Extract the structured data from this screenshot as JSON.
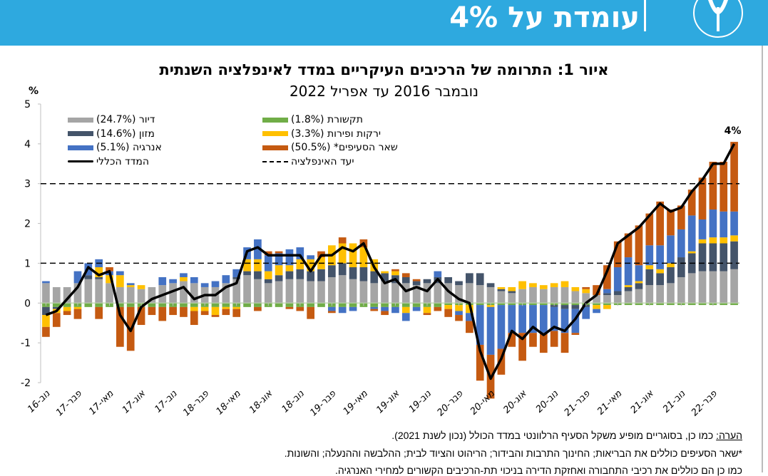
{
  "header": {
    "title": "עומדת על 4%",
    "logo_text": "בנק ישראל"
  },
  "chart_data": {
    "type": "bar",
    "stacked": true,
    "title": "איור 1: התרומה של הרכיבים העיקריים במדד לאינפלציה השנתית",
    "subtitle": "נובמבר 2016 עד  אפריל 2022",
    "ylabel": "%",
    "ylim": [
      -2,
      5
    ],
    "yticks": [
      "5",
      "4",
      "3",
      "2",
      "1",
      "0",
      "-1",
      "-2"
    ],
    "xtick_labels": [
      "נוב-16",
      "פבר-17",
      "מאי-17",
      "אוג-17",
      "נוב-17",
      "פבר-18",
      "מאי-18",
      "אוג-18",
      "נוב-18",
      "פבר-19",
      "מאי-19",
      "אוג-19",
      "נוב-19",
      "פבר-20",
      "מאי-20",
      "אוג-20",
      "נוב-20",
      "פבר-21",
      "מאי-21",
      "אוג-21",
      "נוב-21",
      "פבר-22"
    ],
    "x": [
      "נוב-16",
      "דצמ-16",
      "ינו-17",
      "פבר-17",
      "מרץ-17",
      "אפר-17",
      "מאי-17",
      "יונ-17",
      "יול-17",
      "אוג-17",
      "ספט-17",
      "אוק-17",
      "נוב-17",
      "דצמ-17",
      "ינו-18",
      "פבר-18",
      "מרץ-18",
      "אפר-18",
      "מאי-18",
      "יונ-18",
      "יול-18",
      "אוג-18",
      "ספט-18",
      "אוק-18",
      "נוב-18",
      "דצמ-18",
      "ינו-19",
      "פבר-19",
      "מרץ-19",
      "אפר-19",
      "מאי-19",
      "יונ-19",
      "יול-19",
      "אוג-19",
      "ספט-19",
      "אוק-19",
      "נוב-19",
      "דצמ-19",
      "ינו-20",
      "פבר-20",
      "מרץ-20",
      "אפר-20",
      "מאי-20",
      "יונ-20",
      "יול-20",
      "אוג-20",
      "ספט-20",
      "אוק-20",
      "נוב-20",
      "דצמ-20",
      "ינו-21",
      "פבר-21",
      "מרץ-21",
      "אפר-21",
      "מאי-21",
      "יונ-21",
      "יול-21",
      "אוג-21",
      "ספט-21",
      "אוק-21",
      "נוב-21",
      "דצמ-21",
      "ינו-22",
      "פבר-22",
      "מרץ-22",
      "אפר-22"
    ],
    "series": [
      {
        "name": "תקשורת (1.8%)",
        "color": "#70ad47",
        "values": [
          -0.1,
          -0.1,
          -0.1,
          -0.1,
          -0.1,
          -0.1,
          -0.1,
          -0.1,
          -0.1,
          -0.1,
          -0.1,
          -0.1,
          -0.1,
          -0.1,
          -0.1,
          -0.1,
          -0.1,
          -0.1,
          -0.1,
          -0.1,
          -0.1,
          -0.1,
          -0.1,
          -0.1,
          -0.1,
          -0.1,
          -0.1,
          -0.1,
          -0.1,
          -0.1,
          -0.1,
          -0.1,
          -0.1,
          -0.1,
          -0.1,
          -0.1,
          -0.1,
          -0.1,
          -0.05,
          -0.05,
          -0.05,
          -0.05,
          -0.05,
          -0.05,
          -0.05,
          -0.05,
          -0.05,
          -0.05,
          -0.05,
          -0.05,
          -0.05,
          -0.05,
          -0.05,
          -0.05,
          -0.05,
          -0.05,
          -0.05,
          -0.05,
          -0.05,
          -0.05,
          -0.05,
          -0.05,
          -0.05,
          -0.05,
          -0.05,
          -0.05
        ]
      },
      {
        "name": "דיור (24.7%)",
        "color": "#a5a5a5",
        "values": [
          0.5,
          0.4,
          0.4,
          0.5,
          0.6,
          0.6,
          0.5,
          0.4,
          0.4,
          0.35,
          0.4,
          0.45,
          0.5,
          0.55,
          0.5,
          0.4,
          0.4,
          0.5,
          0.6,
          0.7,
          0.6,
          0.5,
          0.55,
          0.6,
          0.6,
          0.55,
          0.55,
          0.65,
          0.7,
          0.6,
          0.55,
          0.5,
          0.55,
          0.5,
          0.5,
          0.45,
          0.5,
          0.5,
          0.5,
          0.45,
          0.5,
          0.45,
          0.4,
          0.3,
          0.25,
          0.35,
          0.4,
          0.35,
          0.4,
          0.4,
          0.3,
          0.25,
          0.2,
          0.2,
          0.2,
          0.3,
          0.35,
          0.45,
          0.45,
          0.5,
          0.65,
          0.75,
          0.8,
          0.8,
          0.8,
          0.85
        ]
      },
      {
        "name": "מזון (14.6%)",
        "color": "#44546a",
        "values": [
          -0.2,
          -0.05,
          0,
          0,
          0.1,
          0.05,
          0,
          0,
          0,
          0,
          0,
          0,
          0,
          0,
          0,
          0,
          0,
          0,
          0.05,
          0.1,
          0.2,
          0.1,
          0.15,
          0.2,
          0.25,
          0.25,
          0.3,
          0.3,
          0.3,
          0.3,
          0.35,
          0.3,
          0.2,
          0.2,
          0.15,
          0.1,
          0.1,
          0.15,
          0.15,
          0.1,
          0.25,
          0.3,
          0.1,
          0.05,
          0.05,
          0,
          0,
          0,
          -0.05,
          -0.1,
          -0.1,
          -0.05,
          0,
          0.05,
          0.1,
          0.1,
          0.15,
          0.4,
          0.3,
          0.4,
          0.5,
          0.5,
          0.7,
          0.7,
          0.7,
          0.7
        ]
      },
      {
        "name": "ירקות ופירות (3.3%)",
        "color": "#ffc000",
        "values": [
          -0.3,
          -0.1,
          -0.1,
          -0.05,
          0,
          0.25,
          0.2,
          0.3,
          0.05,
          0.1,
          0,
          0,
          0,
          0.1,
          -0.1,
          -0.1,
          -0.2,
          -0.05,
          -0.05,
          0.3,
          0.3,
          0.2,
          0.25,
          0.15,
          0.25,
          0.3,
          0.3,
          0.5,
          0.5,
          0.6,
          0.5,
          0.3,
          0.05,
          0.1,
          -0.15,
          0,
          -0.15,
          0,
          -0.1,
          -0.15,
          -0.2,
          0,
          -0.05,
          0.05,
          0.1,
          0.2,
          0.1,
          0.1,
          0.1,
          0.15,
          0.1,
          0.1,
          -0.1,
          -0.1,
          0,
          0.05,
          0.05,
          0.1,
          0.1,
          0.1,
          0,
          0.05,
          0.1,
          0.15,
          0.15,
          0.15
        ]
      },
      {
        "name": "אנרגיה (5.1%)",
        "color": "#4472c4",
        "values": [
          0.05,
          0,
          0,
          0.3,
          0.3,
          0.2,
          0.1,
          0.1,
          0.05,
          0,
          0,
          0.2,
          0.1,
          0.1,
          0.15,
          0.1,
          0.15,
          0.2,
          0.2,
          0.3,
          0.5,
          0.4,
          0.3,
          0.4,
          0.3,
          0.1,
          0,
          -0.1,
          -0.15,
          -0.1,
          0,
          -0.05,
          -0.1,
          -0.15,
          -0.2,
          -0.1,
          0,
          0.15,
          0,
          -0.1,
          -0.2,
          -1.0,
          -1.2,
          -1.1,
          -0.7,
          -0.7,
          -0.7,
          -0.7,
          -0.6,
          -0.6,
          -0.6,
          -0.3,
          -0.1,
          0.1,
          0.6,
          0.7,
          0.4,
          0.5,
          0.6,
          0.7,
          0.7,
          0.9,
          0.5,
          0.7,
          0.65,
          0.6
        ]
      },
      {
        "name": "שאר הסעיפים* (50.5%)",
        "color": "#c55a11",
        "values": [
          -0.25,
          -0.35,
          -0.1,
          -0.25,
          0,
          -0.3,
          0.1,
          -1.0,
          -1.1,
          -0.45,
          -0.2,
          -0.35,
          -0.2,
          -0.25,
          -0.35,
          -0.1,
          -0.05,
          -0.15,
          -0.2,
          0,
          -0.1,
          0.1,
          0.05,
          -0.05,
          -0.1,
          -0.3,
          0.15,
          -0.05,
          0.15,
          0,
          0.2,
          -0.05,
          -0.1,
          0.05,
          0.1,
          0.05,
          -0.05,
          -0.1,
          -0.2,
          -0.15,
          -0.3,
          -0.9,
          -1.1,
          -0.65,
          -0.35,
          -0.7,
          -0.35,
          -0.5,
          -0.4,
          -0.5,
          -0.05,
          0.05,
          0.25,
          0.6,
          0.65,
          0.6,
          1.0,
          0.8,
          1.1,
          0.65,
          0.6,
          0.65,
          1.05,
          1.2,
          1.25,
          1.75
        ]
      }
    ],
    "line": {
      "name": "המדד הכללי",
      "color": "#000000",
      "values": [
        -0.3,
        -0.2,
        0.1,
        0.4,
        0.9,
        0.7,
        0.8,
        -0.3,
        -0.7,
        -0.1,
        0.1,
        0.2,
        0.3,
        0.4,
        0.1,
        0.2,
        0.2,
        0.4,
        0.5,
        1.3,
        1.4,
        1.2,
        1.2,
        1.2,
        1.2,
        0.8,
        1.2,
        1.2,
        1.4,
        1.3,
        1.5,
        0.9,
        0.5,
        0.6,
        0.3,
        0.4,
        0.3,
        0.6,
        0.3,
        0.1,
        0.0,
        -1.2,
        -1.9,
        -1.4,
        -0.7,
        -0.9,
        -0.6,
        -0.8,
        -0.6,
        -0.7,
        -0.4,
        0.0,
        0.2,
        0.8,
        1.5,
        1.7,
        1.9,
        2.2,
        2.5,
        2.3,
        2.4,
        2.8,
        3.1,
        3.5,
        3.5,
        4.0
      ]
    },
    "target": {
      "name": "יעד האינפלציה",
      "range": [
        1,
        3
      ]
    },
    "annotation": "4%",
    "legend": {
      "left": [
        "דיור (24.7%)",
        "מזון (14.6%)",
        "אנרגיה (5.1%)",
        "המדד הכללי"
      ],
      "right": [
        "תקשורת (1.8%)",
        "ירקות ופירות (3.3%)",
        "שאר הסעיפים* (50.5%)",
        "יעד האינפלציה"
      ],
      "placement": "top-left"
    },
    "grid": false
  },
  "notes": {
    "note_label": "הערה:",
    "note_text": " כמו כן, בסוגריים מופיע משקל הסעיף הרלוונטי במדד הכולל (נכון לשנת 2021).",
    "footnote": "*שאר הסעיפים כוללים את הבריאות; החינוך התרבות והבידור; הריהוט והציוד לבית; ההלבשה וההנעלה; והשונות.",
    "footnote2": "כמו כן הם כוללים את רכיבי התחבורה ואחזקת הדירה בניכוי תת-הרכיבים הקשורים למחירי האנרגיה."
  }
}
